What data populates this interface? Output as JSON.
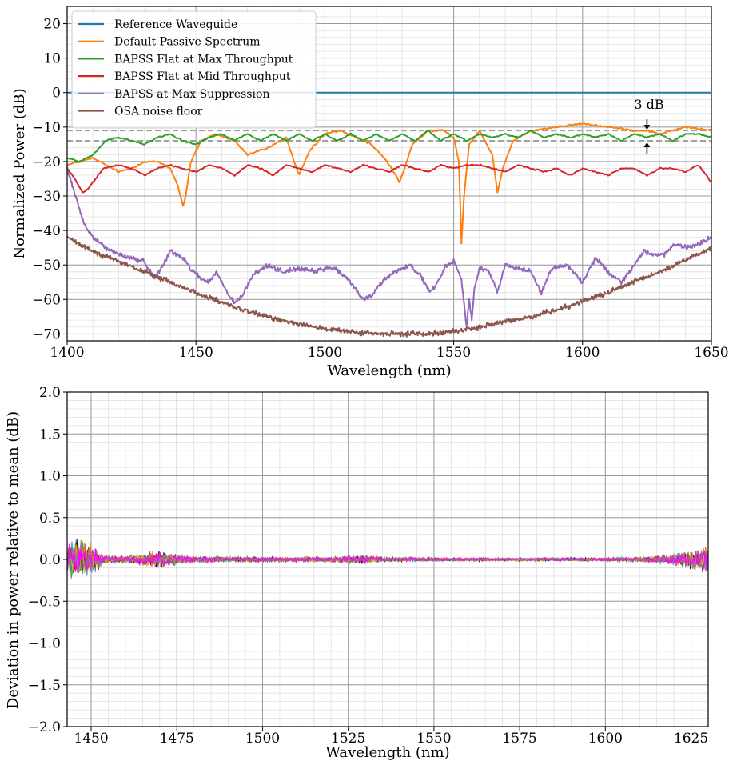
{
  "chart_data": [
    {
      "type": "line",
      "xlabel": "Wavelength (nm)",
      "ylabel": "Normalized Power (dB)",
      "xlim": [
        1400,
        1650
      ],
      "ylim": [
        -72,
        25
      ],
      "xticks": [
        1400,
        1450,
        1500,
        1550,
        1600,
        1650
      ],
      "xtick_labels": [
        "1400",
        "1450",
        "1500",
        "1550",
        "1600",
        "1650"
      ],
      "yticks": [
        -70,
        -60,
        -50,
        -40,
        -30,
        -20,
        -10,
        0,
        10,
        20
      ],
      "ytick_labels": [
        "−70",
        "−60",
        "−50",
        "−40",
        "−30",
        "−20",
        "−10",
        "0",
        "10",
        "20"
      ],
      "grid": true,
      "legend_position": "upper-left",
      "annotation": {
        "text": "3 dB",
        "x": 1625,
        "y_upper": -11,
        "y_lower": -14
      },
      "reference_lines": [
        -11,
        -14
      ],
      "series": [
        {
          "name": "Reference Waveguide",
          "color": "#1f77b4",
          "x": [
            1400,
            1650
          ],
          "y": [
            0,
            0
          ]
        },
        {
          "name": "Default Passive Spectrum",
          "color": "#ff7f0e",
          "x": [
            1400,
            1405,
            1410,
            1415,
            1420,
            1425,
            1430,
            1435,
            1440,
            1443,
            1445,
            1446,
            1448,
            1452,
            1458,
            1465,
            1470,
            1478,
            1485,
            1488,
            1490,
            1494,
            1500,
            1506,
            1512,
            1518,
            1522,
            1526,
            1529,
            1531,
            1534,
            1540,
            1546,
            1550,
            1552,
            1553,
            1554,
            1556,
            1560,
            1565,
            1567,
            1569,
            1573,
            1580,
            1590,
            1600,
            1610,
            1620,
            1625,
            1630,
            1640,
            1650
          ],
          "y": [
            -21,
            -20,
            -19,
            -21,
            -23,
            -22,
            -20,
            -20,
            -22,
            -27,
            -33,
            -30,
            -20,
            -14,
            -12,
            -14,
            -18,
            -16,
            -13,
            -20,
            -24,
            -17,
            -12,
            -11,
            -13,
            -15,
            -18,
            -22,
            -26,
            -22,
            -15,
            -11,
            -11,
            -13,
            -20,
            -44,
            -30,
            -15,
            -11,
            -18,
            -29,
            -22,
            -14,
            -11,
            -10,
            -9,
            -10,
            -11,
            -11,
            -12,
            -10,
            -11
          ]
        },
        {
          "name": "BAPSS Flat at Max Throughput",
          "color": "#2ca02c",
          "x": [
            1400,
            1405,
            1410,
            1415,
            1420,
            1425,
            1430,
            1435,
            1440,
            1445,
            1450,
            1455,
            1460,
            1465,
            1470,
            1475,
            1480,
            1485,
            1490,
            1495,
            1500,
            1505,
            1510,
            1515,
            1520,
            1525,
            1530,
            1535,
            1540,
            1545,
            1550,
            1555,
            1560,
            1565,
            1570,
            1575,
            1580,
            1585,
            1590,
            1595,
            1600,
            1605,
            1610,
            1615,
            1620,
            1625,
            1630,
            1635,
            1640,
            1645,
            1650
          ],
          "y": [
            -19,
            -20,
            -18,
            -14,
            -13,
            -14,
            -15,
            -13,
            -12,
            -14,
            -15,
            -13,
            -12,
            -14,
            -12,
            -14,
            -12,
            -14,
            -12,
            -14,
            -12,
            -14,
            -12,
            -14,
            -12,
            -14,
            -12,
            -14,
            -11,
            -14,
            -12,
            -14,
            -12,
            -13,
            -12,
            -13,
            -11,
            -13,
            -12,
            -13,
            -12,
            -13,
            -12,
            -14,
            -12,
            -13,
            -12,
            -14,
            -12,
            -12,
            -13
          ]
        },
        {
          "name": "BAPSS Flat at Mid Throughput",
          "color": "#d62728",
          "x": [
            1400,
            1403,
            1406,
            1408,
            1410,
            1414,
            1420,
            1425,
            1430,
            1435,
            1440,
            1445,
            1450,
            1455,
            1460,
            1465,
            1470,
            1475,
            1480,
            1485,
            1490,
            1495,
            1500,
            1505,
            1510,
            1515,
            1520,
            1525,
            1530,
            1535,
            1540,
            1545,
            1550,
            1555,
            1560,
            1565,
            1570,
            1575,
            1580,
            1585,
            1590,
            1595,
            1600,
            1605,
            1610,
            1615,
            1620,
            1625,
            1630,
            1635,
            1640,
            1645,
            1650
          ],
          "y": [
            -22,
            -25,
            -29,
            -28,
            -26,
            -22,
            -21,
            -22,
            -24,
            -22,
            -21,
            -22,
            -23,
            -21,
            -22,
            -24,
            -21,
            -22,
            -24,
            -21,
            -22,
            -23,
            -21,
            -22,
            -23,
            -21,
            -22,
            -23,
            -21,
            -22,
            -23,
            -21,
            -22,
            -21,
            -21,
            -22,
            -23,
            -21,
            -22,
            -23,
            -22,
            -24,
            -22,
            -23,
            -24,
            -22,
            -22,
            -24,
            -22,
            -22,
            -23,
            -21,
            -26
          ]
        },
        {
          "name": "BAPSS at Max Suppression",
          "color": "#9467bd",
          "x": [
            1400,
            1402,
            1404,
            1406,
            1408,
            1410,
            1415,
            1420,
            1425,
            1430,
            1434,
            1437,
            1440,
            1445,
            1448,
            1452,
            1455,
            1458,
            1462,
            1465,
            1468,
            1472,
            1478,
            1484,
            1490,
            1496,
            1500,
            1504,
            1510,
            1515,
            1518,
            1522,
            1527,
            1533,
            1537,
            1541,
            1544,
            1547,
            1550,
            1553,
            1555,
            1556,
            1557,
            1558,
            1560,
            1564,
            1567,
            1570,
            1576,
            1580,
            1584,
            1588,
            1594,
            1600,
            1605,
            1610,
            1615,
            1620,
            1624,
            1628,
            1632,
            1636,
            1640,
            1645,
            1650
          ],
          "y": [
            -22,
            -27,
            -32,
            -37,
            -40,
            -42,
            -45,
            -47,
            -48,
            -49,
            -54,
            -50,
            -46,
            -48,
            -51,
            -54,
            -55,
            -52,
            -58,
            -61,
            -59,
            -53,
            -50,
            -52,
            -51,
            -52,
            -51,
            -51,
            -55,
            -60,
            -59,
            -55,
            -52,
            -50,
            -53,
            -58,
            -55,
            -50,
            -49,
            -54,
            -68,
            -60,
            -66,
            -57,
            -51,
            -52,
            -58,
            -50,
            -51,
            -52,
            -58,
            -51,
            -50,
            -55,
            -48,
            -52,
            -55,
            -50,
            -46,
            -47,
            -47,
            -44,
            -45,
            -44,
            -42
          ]
        },
        {
          "name": "OSA noise floor",
          "color": "#8c564b",
          "x": [
            1400,
            1410,
            1420,
            1430,
            1440,
            1450,
            1460,
            1470,
            1480,
            1490,
            1500,
            1510,
            1520,
            1530,
            1540,
            1550,
            1560,
            1570,
            1580,
            1590,
            1600,
            1610,
            1620,
            1630,
            1640,
            1650
          ],
          "y": [
            -42,
            -46,
            -49,
            -52,
            -55,
            -58,
            -61,
            -63.5,
            -65.5,
            -67,
            -68.5,
            -69.5,
            -70,
            -70,
            -69.8,
            -69.3,
            -68,
            -66.5,
            -65,
            -63,
            -60.5,
            -58,
            -55,
            -52,
            -48.5,
            -45
          ]
        }
      ]
    },
    {
      "type": "line",
      "xlabel": "Wavelength (nm)",
      "ylabel": "Deviation in power relative to mean (dB)",
      "xlim": [
        1443,
        1630
      ],
      "ylim": [
        -2.0,
        2.0
      ],
      "xticks": [
        1450,
        1475,
        1500,
        1525,
        1550,
        1575,
        1600,
        1625
      ],
      "xtick_labels": [
        "1450",
        "1475",
        "1500",
        "1525",
        "1550",
        "1575",
        "1600",
        "1625"
      ],
      "yticks": [
        -2.0,
        -1.5,
        -1.0,
        -0.5,
        0.0,
        0.5,
        1.0,
        1.5,
        2.0
      ],
      "ytick_labels": [
        "−2.0",
        "−1.5",
        "−1.0",
        "−0.5",
        "0.0",
        "0.5",
        "1.0",
        "1.5",
        "2.0"
      ],
      "grid": true,
      "envelope": {
        "x": [
          1443,
          1445,
          1447,
          1450,
          1453,
          1456,
          1460,
          1465,
          1470,
          1473,
          1478,
          1485,
          1500,
          1520,
          1525,
          1530,
          1535,
          1550,
          1575,
          1600,
          1610,
          1615,
          1620,
          1625,
          1628,
          1630
        ],
        "amplitude": [
          0.3,
          0.38,
          0.36,
          0.26,
          0.1,
          0.06,
          0.06,
          0.1,
          0.16,
          0.12,
          0.06,
          0.05,
          0.04,
          0.04,
          0.06,
          0.07,
          0.04,
          0.03,
          0.025,
          0.03,
          0.04,
          0.06,
          0.1,
          0.15,
          0.2,
          0.22
        ]
      },
      "series_colors": [
        "#1f77b4",
        "#17becf",
        "#2ca02c",
        "#000000",
        "#d62728",
        "#ff7f0e",
        "#8c564b",
        "#bcbd22",
        "#9467bd",
        "#ff00ff"
      ]
    }
  ]
}
